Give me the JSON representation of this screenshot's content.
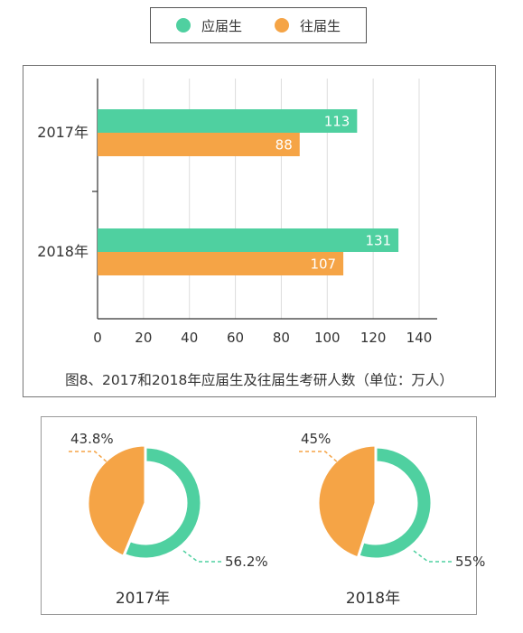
{
  "colors": {
    "fresh": "#4fd0a0",
    "prior": "#f5a446",
    "axis": "#333333",
    "grid": "#dddddd"
  },
  "legend": {
    "items": [
      {
        "label": "应届生",
        "color": "#4fd0a0"
      },
      {
        "label": "往届生",
        "color": "#f5a446"
      }
    ]
  },
  "caption": "图8、2017和2018年应届生及往届生考研人数（单位：万人）",
  "chart_data": [
    {
      "type": "bar",
      "orientation": "horizontal",
      "categories": [
        "2017年",
        "2018年"
      ],
      "series": [
        {
          "name": "应届生",
          "values": [
            113,
            131
          ]
        },
        {
          "name": "往届生",
          "values": [
            88,
            107
          ]
        }
      ],
      "xlim": [
        0,
        140
      ],
      "xticks": [
        "0",
        "20",
        "40",
        "60",
        "80",
        "100",
        "120",
        "140"
      ],
      "grid": true,
      "data_labels": true
    },
    {
      "type": "pie",
      "donut": true,
      "title": "2017年",
      "slices": [
        {
          "value": 56.2,
          "label": "56.2%"
        },
        {
          "value": 43.8,
          "label": "43.8%"
        }
      ]
    },
    {
      "type": "pie",
      "donut": true,
      "title": "2018年",
      "slices": [
        {
          "value": 55,
          "label": "55%"
        },
        {
          "value": 45,
          "label": "45%"
        }
      ]
    }
  ]
}
